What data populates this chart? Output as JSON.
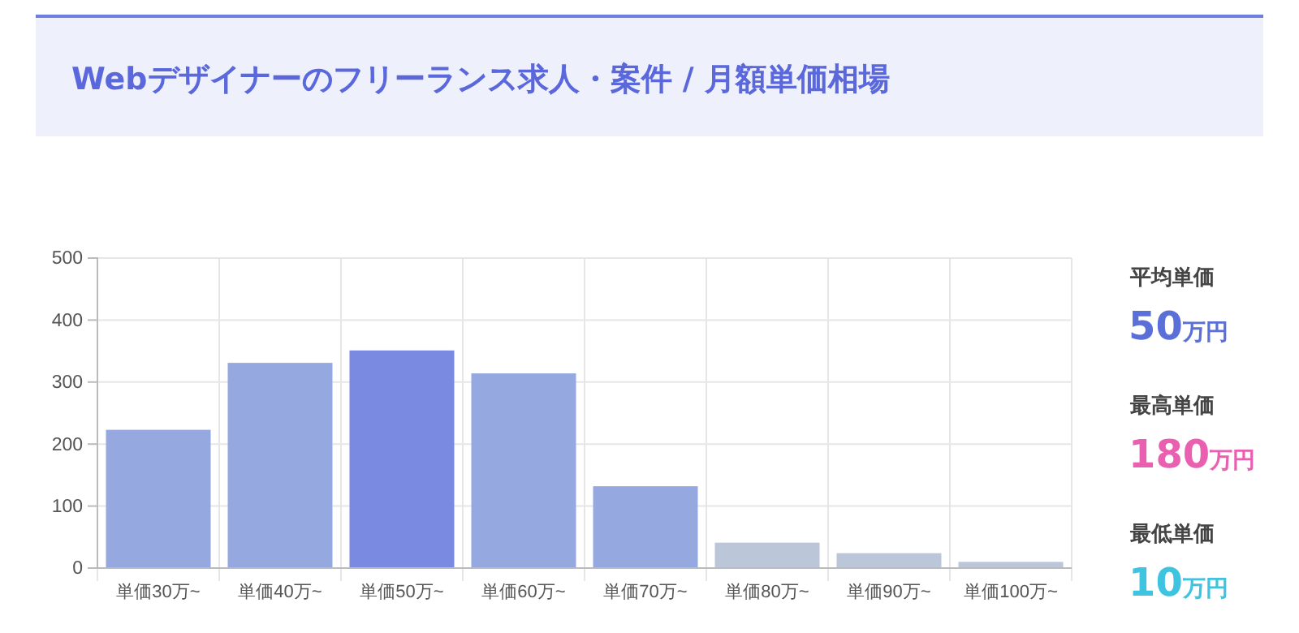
{
  "chart_data": {
    "type": "bar",
    "title": "Webデザイナーのフリーランス求人・案件 / 月額単価相場",
    "categories": [
      "単価30万~",
      "単価40万~",
      "単価50万~",
      "単価60万~",
      "単価70万~",
      "単価80万~",
      "単価90万~",
      "単価100万~"
    ],
    "values": [
      223,
      331,
      351,
      314,
      132,
      41,
      24,
      10
    ],
    "colors": [
      "#95a8df",
      "#95a8df",
      "#7a8ae0",
      "#95a8df",
      "#95a8df",
      "#bcc6d9",
      "#bcc6d9",
      "#bcc6d9"
    ],
    "ylim": [
      0,
      500
    ],
    "yticks": [
      0,
      100,
      200,
      300,
      400,
      500
    ],
    "grid": true,
    "annotations": [
      "平均単価",
      "50万円",
      "最高単価",
      "180万円",
      "最低単価",
      "10万円"
    ]
  }
}
